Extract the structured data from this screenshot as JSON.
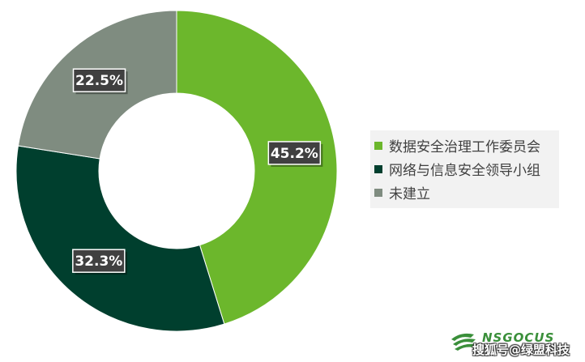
{
  "chart_data": {
    "type": "pie",
    "donut": true,
    "categories": [
      "数据安全治理工作委员会",
      "网络与信息安全领导小组",
      "未建立"
    ],
    "values": [
      45.2,
      32.3,
      22.5
    ],
    "value_labels": [
      "45.2%",
      "32.3%",
      "22.5%"
    ],
    "unit": "%",
    "colors": [
      "#6cb72c",
      "#003f2e",
      "#7f8c80"
    ],
    "legend_position": "right",
    "start_angle": "top",
    "direction": "clockwise"
  },
  "watermark": {
    "brand": "NSGOCUS",
    "text": "搜狐号@绿盟科技",
    "logo_color": "#3a8f3a"
  }
}
